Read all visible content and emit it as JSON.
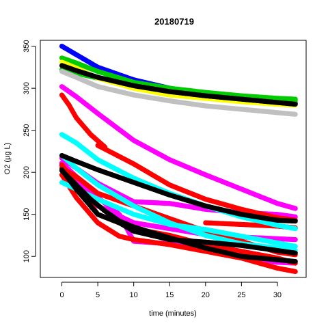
{
  "chart_data": {
    "type": "scatter",
    "title": "20180719",
    "xlabel": "time (minutes)",
    "ylabel": "O2 (µg L)",
    "xlim": [
      -3,
      34
    ],
    "ylim": [
      75,
      357
    ],
    "x_ticks": [
      0,
      5,
      10,
      15,
      20,
      25,
      30
    ],
    "y_ticks": [
      100,
      150,
      200,
      250,
      300,
      350
    ],
    "grid": false,
    "legend": "none",
    "series": [
      {
        "color": "#0000FF",
        "x": [
          0,
          2,
          5,
          10,
          15,
          20,
          25,
          30,
          32.5
        ],
        "y": [
          350,
          340,
          325,
          310,
          300,
          293,
          288,
          284,
          282
        ]
      },
      {
        "color": "#00CC00",
        "x": [
          0,
          2,
          5,
          10,
          15,
          20,
          25,
          30,
          32.5
        ],
        "y": [
          322,
          318,
          312,
          304,
          298,
          294,
          290,
          287,
          285
        ]
      },
      {
        "color": "#00CC00",
        "x": [
          0,
          2,
          5,
          10,
          15,
          20,
          25,
          30,
          32.5
        ],
        "y": [
          336,
          330,
          320,
          307,
          300,
          295,
          291,
          288,
          287
        ]
      },
      {
        "color": "#FFFF00",
        "x": [
          0,
          2,
          5,
          10,
          15,
          20,
          25,
          30,
          32.5
        ],
        "y": [
          331,
          324,
          312,
          300,
          292,
          288,
          284,
          281,
          280
        ]
      },
      {
        "color": "#000000",
        "x": [
          0,
          2,
          5,
          10,
          15,
          20,
          25,
          30,
          32.5
        ],
        "y": [
          327,
          321,
          313,
          303,
          296,
          291,
          287,
          283,
          281
        ]
      },
      {
        "color": "#C0C0C0",
        "x": [
          0,
          2,
          5,
          10,
          15,
          20,
          25,
          30,
          32.5
        ],
        "y": [
          320,
          313,
          302,
          292,
          285,
          279,
          275,
          271,
          269
        ]
      },
      {
        "color": "#FF00FF",
        "x": [
          0,
          2,
          5,
          10,
          15,
          20,
          25,
          30,
          32.5
        ],
        "y": [
          302,
          290,
          270,
          238,
          215,
          197,
          180,
          163,
          157
        ]
      },
      {
        "color": "#FF00FF",
        "x": [
          0,
          2,
          5,
          10,
          15,
          20,
          25,
          30,
          32.5
        ],
        "y": [
          217,
          205,
          187,
          165,
          163,
          156,
          152,
          150,
          147
        ]
      },
      {
        "color": "#FF00FF",
        "x": [
          0,
          2,
          5,
          10,
          15,
          20,
          25,
          30,
          32.5
        ],
        "y": [
          208,
          190,
          160,
          140,
          133,
          126,
          123,
          121,
          120
        ]
      },
      {
        "color": "#FF00FF",
        "x": [
          0,
          2,
          5,
          8,
          10,
          15,
          20,
          25,
          30,
          32.5
        ],
        "y": [
          211,
          195,
          170,
          150,
          118,
          115,
          108,
          100,
          93,
          92
        ]
      },
      {
        "color": "#FF0000",
        "x": [
          0,
          1,
          2,
          4,
          6
        ],
        "y": [
          292,
          280,
          265,
          245,
          230
        ]
      },
      {
        "color": "#FF0000",
        "x": [
          5,
          10,
          15,
          20,
          25,
          30,
          32.5
        ],
        "y": [
          232,
          210,
          185,
          168,
          156,
          146,
          143
        ]
      },
      {
        "color": "#FF0000",
        "x": [
          0,
          2,
          5,
          10,
          15,
          20,
          25,
          30,
          32.5
        ],
        "y": [
          205,
          195,
          175,
          160,
          145,
          130,
          118,
          105,
          102
        ]
      },
      {
        "color": "#FF0000",
        "x": [
          0,
          2,
          5,
          10,
          15,
          20,
          25,
          30,
          32.5
        ],
        "y": [
          209,
          185,
          150,
          133,
          125,
          114,
          106,
          98,
          92
        ]
      },
      {
        "color": "#FF0000",
        "x": [
          0,
          2,
          5,
          8,
          10,
          15,
          20,
          25,
          30,
          32.5
        ],
        "y": [
          197,
          170,
          140,
          124,
          120,
          114,
          106,
          98,
          86,
          82
        ]
      },
      {
        "color": "#FF0000",
        "x": [
          20,
          25,
          30,
          32.5
        ],
        "y": [
          140,
          138,
          136,
          134
        ]
      },
      {
        "color": "#00FFFF",
        "x": [
          0,
          2,
          5,
          10,
          15,
          20,
          25,
          30,
          32.5
        ],
        "y": [
          245,
          235,
          215,
          193,
          175,
          160,
          147,
          137,
          133
        ]
      },
      {
        "color": "#00FFFF",
        "x": [
          0,
          2,
          5,
          10,
          15,
          20,
          25,
          30,
          32.5
        ],
        "y": [
          220,
          205,
          185,
          160,
          140,
          125,
          115,
          110,
          107
        ]
      },
      {
        "color": "#00FFFF",
        "x": [
          0,
          2,
          5,
          10,
          15,
          20,
          25,
          30,
          32.5
        ],
        "y": [
          188,
          180,
          168,
          150,
          138,
          132,
          124,
          116,
          112
        ]
      },
      {
        "color": "#000000",
        "x": [
          0,
          2,
          5,
          10,
          15,
          20,
          25,
          30,
          32.5
        ],
        "y": [
          220,
          213,
          203,
          188,
          173,
          160,
          150,
          143,
          142
        ]
      },
      {
        "color": "#000000",
        "x": [
          0,
          2,
          5,
          8,
          10,
          15,
          20,
          25,
          30,
          32.5
        ],
        "y": [
          203,
          180,
          150,
          140,
          130,
          120,
          117,
          113,
          107,
          104
        ]
      },
      {
        "color": "#000000",
        "x": [
          0,
          2,
          4,
          6,
          8,
          10,
          15,
          20,
          25,
          30,
          32.5
        ],
        "y": [
          202,
          185,
          168,
          154,
          142,
          135,
          122,
          110,
          100,
          96,
          94
        ]
      }
    ]
  }
}
